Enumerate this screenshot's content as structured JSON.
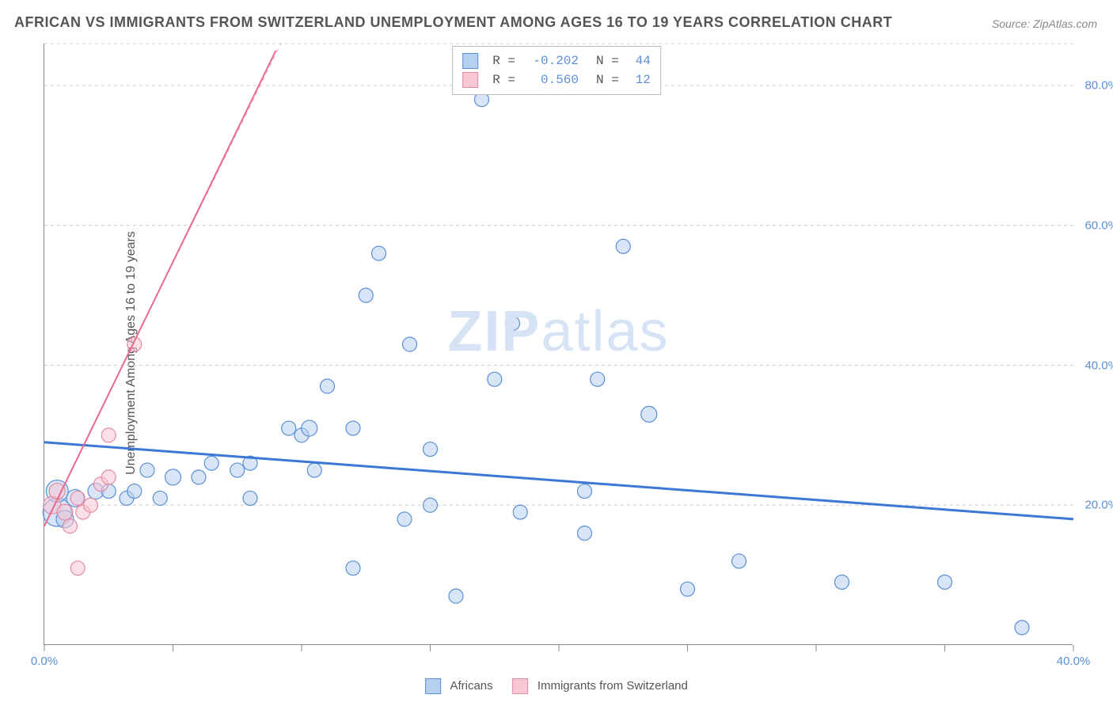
{
  "title": "AFRICAN VS IMMIGRANTS FROM SWITZERLAND UNEMPLOYMENT AMONG AGES 16 TO 19 YEARS CORRELATION CHART",
  "source": "Source: ZipAtlas.com",
  "y_axis_label": "Unemployment Among Ages 16 to 19 years",
  "watermark": {
    "zip": "ZIP",
    "atlas": "atlas"
  },
  "chart": {
    "type": "scatter",
    "xlim": [
      0,
      40
    ],
    "ylim": [
      0,
      86
    ],
    "x_ticks": [
      0,
      5,
      10,
      15,
      20,
      25,
      30,
      35,
      40
    ],
    "x_tick_labels": [
      "0.0%",
      "",
      "",
      "",
      "",
      "",
      "",
      "",
      "40.0%"
    ],
    "y_ticks": [
      20,
      40,
      60,
      80,
      86
    ],
    "y_tick_labels": [
      "20.0%",
      "40.0%",
      "60.0%",
      "80.0%",
      ""
    ],
    "grid_color": "#cccccc",
    "background_color": "#ffffff",
    "series": [
      {
        "name": "Africans",
        "fill_color": "#b6d0ef",
        "fill_opacity": 0.55,
        "stroke_color": "#5b8fd6",
        "stroke_width": 1.2,
        "marker_radius_base": 9,
        "R": "-0.202",
        "N": "44",
        "trend": {
          "x1": 0,
          "y1": 29,
          "x2": 40,
          "y2": 18,
          "color": "#3b78d6",
          "width": 3,
          "dash": ""
        },
        "points": [
          {
            "x": 0.5,
            "y": 19,
            "r": 18
          },
          {
            "x": 0.5,
            "y": 22,
            "r": 14
          },
          {
            "x": 0.8,
            "y": 18,
            "r": 11
          },
          {
            "x": 1.2,
            "y": 21,
            "r": 11
          },
          {
            "x": 2.0,
            "y": 22,
            "r": 10
          },
          {
            "x": 2.5,
            "y": 22,
            "r": 9
          },
          {
            "x": 3.2,
            "y": 21,
            "r": 9
          },
          {
            "x": 3.5,
            "y": 22,
            "r": 9
          },
          {
            "x": 4.0,
            "y": 25,
            "r": 9
          },
          {
            "x": 4.5,
            "y": 21,
            "r": 9
          },
          {
            "x": 5.0,
            "y": 24,
            "r": 10
          },
          {
            "x": 6.0,
            "y": 24,
            "r": 9
          },
          {
            "x": 6.5,
            "y": 26,
            "r": 9
          },
          {
            "x": 7.5,
            "y": 25,
            "r": 9
          },
          {
            "x": 8.0,
            "y": 26,
            "r": 9
          },
          {
            "x": 8.0,
            "y": 21,
            "r": 9
          },
          {
            "x": 9.5,
            "y": 31,
            "r": 9
          },
          {
            "x": 10.0,
            "y": 30,
            "r": 9
          },
          {
            "x": 10.3,
            "y": 31,
            "r": 10
          },
          {
            "x": 10.5,
            "y": 25,
            "r": 9
          },
          {
            "x": 11.0,
            "y": 37,
            "r": 9
          },
          {
            "x": 12.0,
            "y": 31,
            "r": 9
          },
          {
            "x": 12.0,
            "y": 11,
            "r": 9
          },
          {
            "x": 12.5,
            "y": 50,
            "r": 9
          },
          {
            "x": 13.0,
            "y": 56,
            "r": 9
          },
          {
            "x": 14.0,
            "y": 18,
            "r": 9
          },
          {
            "x": 14.2,
            "y": 43,
            "r": 9
          },
          {
            "x": 15.0,
            "y": 28,
            "r": 9
          },
          {
            "x": 15.0,
            "y": 20,
            "r": 9
          },
          {
            "x": 16.0,
            "y": 7,
            "r": 9
          },
          {
            "x": 17.0,
            "y": 78,
            "r": 9
          },
          {
            "x": 17.5,
            "y": 38,
            "r": 9
          },
          {
            "x": 18.2,
            "y": 46,
            "r": 9
          },
          {
            "x": 18.5,
            "y": 19,
            "r": 9
          },
          {
            "x": 21.0,
            "y": 22,
            "r": 9
          },
          {
            "x": 21.0,
            "y": 16,
            "r": 9
          },
          {
            "x": 21.5,
            "y": 38,
            "r": 9
          },
          {
            "x": 22.5,
            "y": 57,
            "r": 9
          },
          {
            "x": 23.5,
            "y": 33,
            "r": 10
          },
          {
            "x": 25.0,
            "y": 8,
            "r": 9
          },
          {
            "x": 27.0,
            "y": 12,
            "r": 9
          },
          {
            "x": 31.0,
            "y": 9,
            "r": 9
          },
          {
            "x": 35.0,
            "y": 9,
            "r": 9
          },
          {
            "x": 38.0,
            "y": 2.5,
            "r": 9
          }
        ]
      },
      {
        "name": "Immigrants from Switzerland",
        "fill_color": "#f7c7d3",
        "fill_opacity": 0.55,
        "stroke_color": "#e38aa3",
        "stroke_width": 1.2,
        "marker_radius_base": 9,
        "R": "0.560",
        "N": "12",
        "trend": {
          "x1": 0,
          "y1": 17,
          "x2": 9,
          "y2": 85,
          "color": "#e86a8f",
          "width": 2,
          "dash": ""
        },
        "trend_extrapolate": {
          "x1": 2.5,
          "y1": 36,
          "x2": 9.2,
          "y2": 86,
          "color": "#f2b5c4",
          "width": 1.2,
          "dash": "5 5"
        },
        "points": [
          {
            "x": 0.3,
            "y": 20,
            "r": 11
          },
          {
            "x": 0.5,
            "y": 22,
            "r": 10
          },
          {
            "x": 0.8,
            "y": 19,
            "r": 10
          },
          {
            "x": 1.0,
            "y": 17,
            "r": 9
          },
          {
            "x": 1.3,
            "y": 21,
            "r": 9
          },
          {
            "x": 1.5,
            "y": 19,
            "r": 9
          },
          {
            "x": 1.8,
            "y": 20,
            "r": 9
          },
          {
            "x": 1.3,
            "y": 11,
            "r": 9
          },
          {
            "x": 2.2,
            "y": 23,
            "r": 9
          },
          {
            "x": 2.5,
            "y": 24,
            "r": 9
          },
          {
            "x": 2.5,
            "y": 30,
            "r": 9
          },
          {
            "x": 3.5,
            "y": 43,
            "r": 9
          }
        ]
      }
    ]
  },
  "legend_bottom": {
    "series1": "Africans",
    "series2": "Immigrants from Switzerland"
  }
}
